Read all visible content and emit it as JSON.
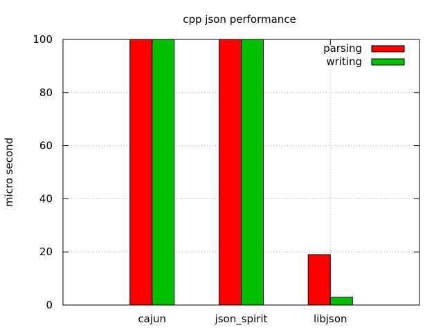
{
  "chart_data": {
    "type": "bar",
    "title": "cpp json performance",
    "xlabel": "",
    "ylabel": "micro second",
    "categories": [
      "cajun",
      "json_spirit",
      "libjson"
    ],
    "series": [
      {
        "name": "parsing",
        "color": "#ff0000",
        "values": [
          100,
          100,
          19
        ]
      },
      {
        "name": "writing",
        "color": "#00c000",
        "values": [
          100,
          100,
          3
        ]
      }
    ],
    "ylim": [
      0,
      100
    ],
    "yticks": [
      "0",
      "20",
      "40",
      "60",
      "80",
      "100"
    ],
    "grid": true,
    "legend_position": "top-right"
  }
}
